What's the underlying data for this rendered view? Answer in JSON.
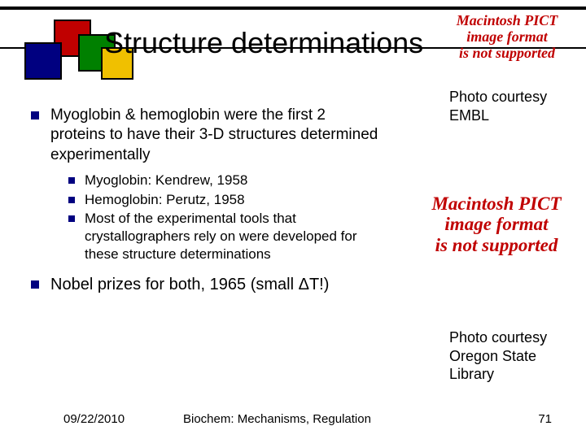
{
  "title": "Structure determinations",
  "bullets": [
    {
      "text": "Myoglobin & hemoglobin were the first 2 proteins to have their 3-D structures determined experimentally",
      "sub": [
        "Myoglobin: Kendrew, 1958",
        "Hemoglobin: Perutz, 1958",
        "Most of the experimental tools that crystallographers rely on were developed for these structure determinations"
      ]
    },
    {
      "text": "Nobel prizes for both, 1965 (small ΔT!)",
      "sub": []
    }
  ],
  "captions": {
    "top": "Photo courtesy EMBL",
    "bottom": "Photo courtesy Oregon State Library"
  },
  "pict_placeholder": {
    "line1": "Macintosh PICT",
    "line2": "image format",
    "line3": "is not supported"
  },
  "footer": {
    "date": "09/22/2010",
    "center": "Biochem: Mechanisms, Regulation",
    "page": "71"
  },
  "colors": {
    "red": "#c00000",
    "green": "#008000",
    "blue": "#000080",
    "yellow": "#f0c000",
    "bullet": "#000080",
    "placeholder_text": "#c00000",
    "text": "#000000",
    "background": "#ffffff"
  }
}
